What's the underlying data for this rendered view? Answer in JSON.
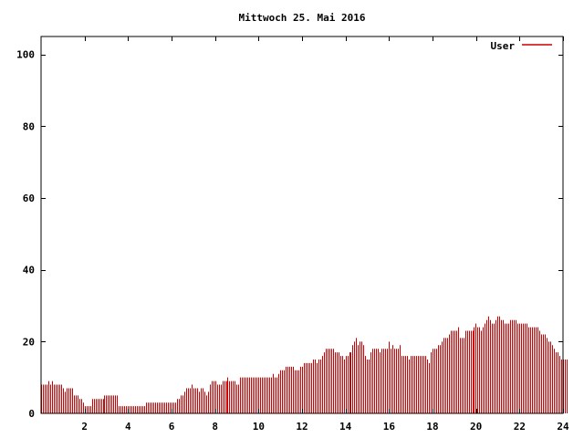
{
  "chart_data": {
    "type": "bar",
    "title": "Mittwoch 25. Mai 2016",
    "xlabel": "",
    "ylabel": "",
    "xlim": [
      0,
      24
    ],
    "ylim": [
      0,
      105
    ],
    "xticks": [
      "2",
      "4",
      "6",
      "8",
      "10",
      "12",
      "14",
      "16",
      "18",
      "20",
      "22",
      "24"
    ],
    "yticks": [
      "0",
      "20",
      "40",
      "60",
      "80",
      "100"
    ],
    "grid": false,
    "legend_position": "top-right",
    "series": [
      {
        "name": "User",
        "color": "#cc0000",
        "step_hours": 0.0833,
        "values": [
          8,
          8,
          8,
          8,
          9,
          8,
          9,
          8,
          8,
          8,
          8,
          8,
          7,
          6,
          7,
          7,
          7,
          7,
          5,
          5,
          5,
          4,
          4,
          3,
          2,
          2,
          2,
          2,
          4,
          4,
          4,
          4,
          4,
          4,
          4,
          5,
          5,
          5,
          5,
          5,
          5,
          5,
          5,
          2,
          2,
          2,
          2,
          2,
          2,
          2,
          2,
          2,
          2,
          2,
          2,
          2,
          2,
          2,
          3,
          3,
          3,
          3,
          3,
          3,
          3,
          3,
          3,
          3,
          3,
          3,
          3,
          3,
          3,
          3,
          3,
          4,
          4,
          5,
          5,
          6,
          7,
          7,
          7,
          8,
          7,
          7,
          7,
          6,
          7,
          7,
          6,
          5,
          6,
          8,
          9,
          9,
          9,
          8,
          8,
          8,
          9,
          9,
          9,
          10,
          9,
          9,
          9,
          9,
          8,
          8,
          10,
          10,
          10,
          10,
          10,
          10,
          10,
          10,
          10,
          10,
          10,
          10,
          10,
          10,
          10,
          10,
          10,
          10,
          11,
          10,
          10,
          11,
          12,
          12,
          12,
          13,
          13,
          13,
          13,
          13,
          12,
          12,
          12,
          13,
          13,
          14,
          14,
          14,
          14,
          14,
          15,
          15,
          14,
          15,
          15,
          16,
          17,
          18,
          18,
          18,
          18,
          18,
          17,
          17,
          17,
          16,
          16,
          15,
          16,
          16,
          17,
          17,
          19,
          20,
          21,
          19,
          20,
          20,
          19,
          16,
          15,
          15,
          17,
          18,
          18,
          18,
          18,
          17,
          18,
          18,
          18,
          18,
          20,
          18,
          19,
          18,
          18,
          18,
          19,
          16,
          16,
          16,
          16,
          15,
          16,
          16,
          16,
          16,
          16,
          16,
          16,
          16,
          16,
          15,
          14,
          17,
          18,
          18,
          18,
          19,
          19,
          20,
          21,
          21,
          21,
          22,
          23,
          23,
          23,
          23,
          24,
          21,
          21,
          21,
          23,
          23,
          23,
          23,
          23,
          24,
          25,
          24,
          24,
          23,
          24,
          25,
          26,
          27,
          26,
          25,
          25,
          26,
          27,
          27,
          26,
          26,
          25,
          25,
          25,
          26,
          26,
          26,
          26,
          25,
          25,
          25,
          25,
          25,
          25,
          24,
          24,
          24,
          24,
          24,
          24,
          23,
          22,
          22,
          22,
          21,
          20,
          20,
          19,
          18,
          17,
          17,
          16,
          15,
          15,
          15,
          15
        ]
      }
    ]
  }
}
